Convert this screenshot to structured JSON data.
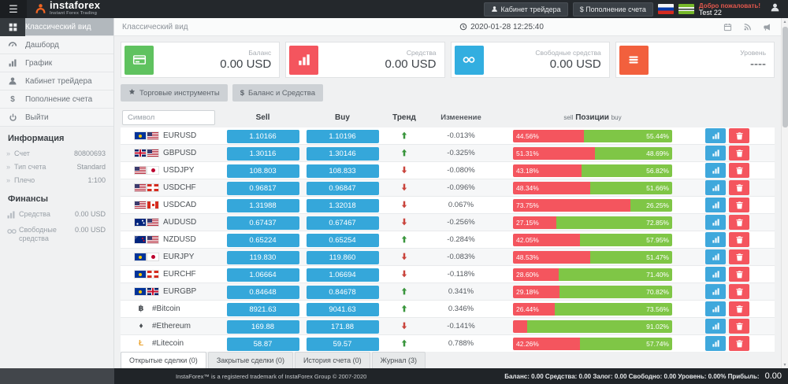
{
  "header": {
    "logo_text": "instaforex",
    "logo_sub": "Instant Forex Trading",
    "trader_cabinet_label": "Кабинет трейдера",
    "deposit_label": "$ Пополнение счета",
    "welcome_label": "Добро пожаловать!",
    "username": "Test 22"
  },
  "sidebar": {
    "items": [
      {
        "label": "Классический вид",
        "icon": "grid",
        "active": true
      },
      {
        "label": "Дашборд",
        "icon": "gauge",
        "active": false
      },
      {
        "label": "График",
        "icon": "bars",
        "active": false
      },
      {
        "label": "Кабинет трейдера",
        "icon": "person",
        "active": false
      },
      {
        "label": "Пополнение счета",
        "icon": "dollar",
        "active": false
      },
      {
        "label": "Выйти",
        "icon": "power",
        "active": false
      }
    ],
    "info_title": "Информация",
    "info": [
      {
        "label": "Счет",
        "value": "80800693"
      },
      {
        "label": "Тип счета",
        "value": "Standard"
      },
      {
        "label": "Плечо",
        "value": "1:100"
      }
    ],
    "finance_title": "Финансы",
    "finance": [
      {
        "label": "Средства",
        "value": "0.00 USD",
        "icon": "bars"
      },
      {
        "label": "Свободные средства",
        "value": "0.00 USD",
        "icon": "binoculars"
      }
    ]
  },
  "topbar": {
    "title": "Классический вид",
    "datetime": "2020-01-28 12:25:40"
  },
  "cards": [
    {
      "label": "Баланс",
      "value": "0.00 USD",
      "icon": "card",
      "color": "#5fc25f"
    },
    {
      "label": "Средства",
      "value": "0.00 USD",
      "icon": "bars",
      "color": "#f4555e"
    },
    {
      "label": "Свободные средства",
      "value": "0.00 USD",
      "icon": "binoculars",
      "color": "#32aee0"
    },
    {
      "label": "Уровень",
      "value": "----",
      "icon": "menu",
      "color": "#f2603d"
    }
  ],
  "filters": [
    {
      "label": "Торговые инструменты",
      "icon": "star"
    },
    {
      "label": "Баланс и Средства",
      "icon": "dollar"
    }
  ],
  "table": {
    "search_placeholder": "Символ",
    "headers": {
      "sell": "Sell",
      "buy": "Buy",
      "trend": "Тренд",
      "change": "Изменение",
      "pos_sell": "sell",
      "pos_mid": "Позиции",
      "pos_buy": "buy"
    },
    "rows": [
      {
        "symbol": "EURUSD",
        "flags": [
          "eu",
          "us"
        ],
        "sell": "1.10166",
        "buy": "1.10196",
        "trend": "up",
        "change": "-0.013%",
        "sell_pct": 44.56,
        "buy_pct": 55.44,
        "sell_label": "44.56%",
        "buy_label": "55.44%"
      },
      {
        "symbol": "GBPUSD",
        "flags": [
          "gb",
          "us"
        ],
        "sell": "1.30116",
        "buy": "1.30146",
        "trend": "up",
        "change": "-0.325%",
        "sell_pct": 51.31,
        "buy_pct": 48.69,
        "sell_label": "51.31%",
        "buy_label": "48.69%"
      },
      {
        "symbol": "USDJPY",
        "flags": [
          "us",
          "jp"
        ],
        "sell": "108.803",
        "buy": "108.833",
        "trend": "down",
        "change": "-0.080%",
        "sell_pct": 43.18,
        "buy_pct": 56.82,
        "sell_label": "43.18%",
        "buy_label": "56.82%"
      },
      {
        "symbol": "USDCHF",
        "flags": [
          "us",
          "ch"
        ],
        "sell": "0.96817",
        "buy": "0.96847",
        "trend": "down",
        "change": "-0.096%",
        "sell_pct": 48.34,
        "buy_pct": 51.66,
        "sell_label": "48.34%",
        "buy_label": "51.66%"
      },
      {
        "symbol": "USDCAD",
        "flags": [
          "us",
          "ca"
        ],
        "sell": "1.31988",
        "buy": "1.32018",
        "trend": "down",
        "change": "0.067%",
        "sell_pct": 73.75,
        "buy_pct": 26.25,
        "sell_label": "73.75%",
        "buy_label": "26.25%"
      },
      {
        "symbol": "AUDUSD",
        "flags": [
          "au",
          "us"
        ],
        "sell": "0.67437",
        "buy": "0.67467",
        "trend": "down",
        "change": "-0.256%",
        "sell_pct": 27.15,
        "buy_pct": 72.85,
        "sell_label": "27.15%",
        "buy_label": "72.85%"
      },
      {
        "symbol": "NZDUSD",
        "flags": [
          "nz",
          "us"
        ],
        "sell": "0.65224",
        "buy": "0.65254",
        "trend": "up",
        "change": "-0.284%",
        "sell_pct": 42.05,
        "buy_pct": 57.95,
        "sell_label": "42.05%",
        "buy_label": "57.95%"
      },
      {
        "symbol": "EURJPY",
        "flags": [
          "eu",
          "jp"
        ],
        "sell": "119.830",
        "buy": "119.860",
        "trend": "down",
        "change": "-0.083%",
        "sell_pct": 48.53,
        "buy_pct": 51.47,
        "sell_label": "48.53%",
        "buy_label": "51.47%"
      },
      {
        "symbol": "EURCHF",
        "flags": [
          "eu",
          "ch"
        ],
        "sell": "1.06664",
        "buy": "1.06694",
        "trend": "down",
        "change": "-0.118%",
        "sell_pct": 28.6,
        "buy_pct": 71.4,
        "sell_label": "28.60%",
        "buy_label": "71.40%"
      },
      {
        "symbol": "EURGBP",
        "flags": [
          "eu",
          "gb"
        ],
        "sell": "0.84648",
        "buy": "0.84678",
        "trend": "up",
        "change": "0.341%",
        "sell_pct": 29.18,
        "buy_pct": 70.82,
        "sell_label": "29.18%",
        "buy_label": "70.82%"
      },
      {
        "symbol": "#Bitcoin",
        "crypto": "฿",
        "crypto_color": "#4a4f54",
        "sell": "8921.63",
        "buy": "9041.63",
        "trend": "up",
        "change": "0.346%",
        "sell_pct": 26.44,
        "buy_pct": 73.56,
        "sell_label": "26.44%",
        "buy_label": "73.56%"
      },
      {
        "symbol": "#Ethereum",
        "crypto": "♦",
        "crypto_color": "#4a4f54",
        "sell": "169.88",
        "buy": "171.88",
        "trend": "down",
        "change": "-0.141%",
        "sell_pct": 8.98,
        "buy_pct": 91.02,
        "sell_label": "",
        "buy_label": "91.02%"
      },
      {
        "symbol": "#Litecoin",
        "crypto": "Ł",
        "crypto_color": "#eda93c",
        "sell": "58.87",
        "buy": "59.57",
        "trend": "up",
        "change": "0.788%",
        "sell_pct": 42.26,
        "buy_pct": 57.74,
        "sell_label": "42.26%",
        "buy_label": "57.74%"
      },
      {
        "symbol": "",
        "flags": [],
        "sell": "",
        "buy": "",
        "trend": "down",
        "change": "",
        "sell_pct": 3,
        "buy_pct": 97,
        "sell_label": "",
        "buy_label": ""
      }
    ]
  },
  "tabs": [
    {
      "label": "Открытые сделки (0)",
      "active": true
    },
    {
      "label": "Закрытые сделки (0)",
      "active": false
    },
    {
      "label": "История счета (0)",
      "active": false
    },
    {
      "label": "Журнал (3)",
      "active": false
    }
  ],
  "footer": {
    "copyright": "InstaForex™ is a registered trademark of InstaForex Group © 2007-2020",
    "summary": [
      "Баланс: 0.00",
      "Средства: 0.00",
      "Залог: 0.00",
      "Свободно: 0.00",
      "Уровень: 0.00%",
      "Прибыль:"
    ],
    "profit_value": "0.00"
  }
}
